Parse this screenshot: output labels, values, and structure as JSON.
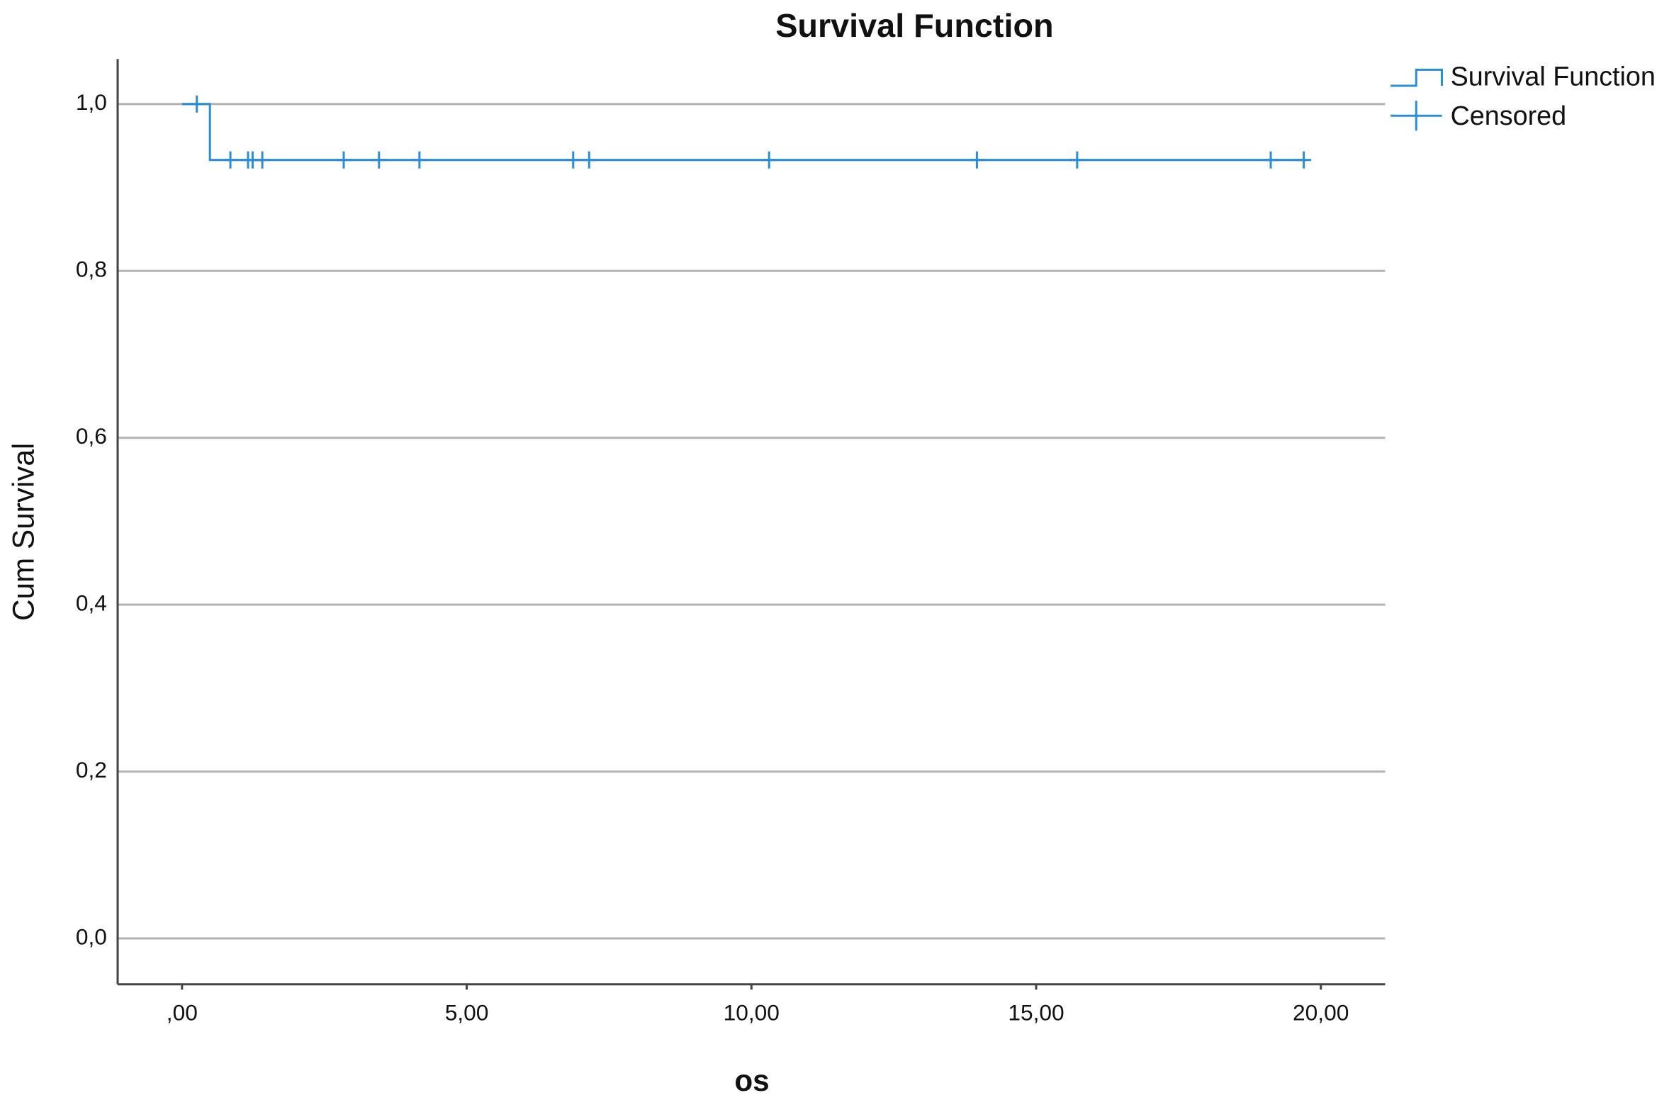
{
  "chart_data": {
    "type": "survival",
    "title": "Survival Function",
    "x_label": "os",
    "y_label": "Cum Survival",
    "xlim": [
      -1.13,
      21.13
    ],
    "ylim": [
      -0.055,
      1.054
    ],
    "xticks": [
      {
        "value": 0,
        "label": ",00"
      },
      {
        "value": 5,
        "label": "5,00"
      },
      {
        "value": 10,
        "label": "10,00"
      },
      {
        "value": 15,
        "label": "15,00"
      },
      {
        "value": 20,
        "label": "20,00"
      }
    ],
    "yticks": [
      {
        "value": 0,
        "label": "0,0"
      },
      {
        "value": 0.2,
        "label": "0,2"
      },
      {
        "value": 0.4,
        "label": "0,4"
      },
      {
        "value": 0.6,
        "label": "0,6"
      },
      {
        "value": 0.8,
        "label": "0,8"
      },
      {
        "value": 1.0,
        "label": "1,0"
      }
    ],
    "grid": true,
    "legend": "top-right",
    "series": [
      {
        "name": "Survival Function",
        "color": "#2b8fd8",
        "x": [
          0,
          0.49,
          0.49,
          19.74
        ],
        "values": [
          1.0,
          1.0,
          0.933,
          0.933
        ]
      },
      {
        "name": "Censored",
        "color": "#2b8fd8",
        "x": [
          0.26,
          0.85,
          1.16,
          1.24,
          1.41,
          2.84,
          3.46,
          4.17,
          6.87,
          7.15,
          10.31,
          13.96,
          15.72,
          19.12,
          19.7
        ],
        "values": [
          1.0,
          0.933,
          0.933,
          0.933,
          0.933,
          0.933,
          0.933,
          0.933,
          0.933,
          0.933,
          0.933,
          0.933,
          0.933,
          0.933,
          0.933
        ]
      }
    ]
  }
}
